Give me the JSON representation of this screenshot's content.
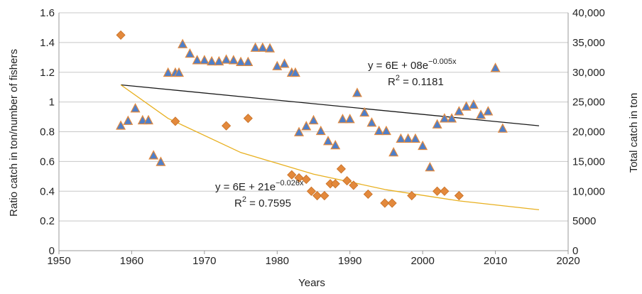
{
  "chart_data": {
    "type": "scatter",
    "xlabel": "Years",
    "ylabel_left": "Ratio catch in ton/number of fishers",
    "ylabel_right": "Total catch in ton",
    "xlim": [
      1950,
      2020
    ],
    "ylim_left": [
      0,
      1.6
    ],
    "ylim_right": [
      0,
      40000
    ],
    "grid": true,
    "x_ticks": [
      "1950",
      "1960",
      "1970",
      "1980",
      "1990",
      "2000",
      "2010",
      "2020"
    ],
    "y_ticks_left": [
      "0",
      "0.2",
      "0.4",
      "0.6",
      "0.8",
      "1",
      "1.2",
      "1.4",
      "1.6"
    ],
    "y_ticks_right": [
      "0",
      "5000",
      "10,000",
      "15,000",
      "20,000",
      "25,000",
      "30,000",
      "35,000",
      "40,000"
    ],
    "series": [
      {
        "axis": "right",
        "marker": "triangle",
        "color": "#4f7fc9",
        "edge_color": "#e3893c",
        "points": [
          [
            1958.5,
            21000
          ],
          [
            1959.5,
            21800
          ],
          [
            1960.5,
            23900
          ],
          [
            1961.5,
            21900
          ],
          [
            1962.3,
            21900
          ],
          [
            1963,
            16000
          ],
          [
            1964,
            14900
          ],
          [
            1965,
            29900
          ],
          [
            1966,
            29900
          ],
          [
            1966.5,
            29900
          ],
          [
            1967,
            34700
          ],
          [
            1968,
            33100
          ],
          [
            1969,
            32000
          ],
          [
            1970,
            32000
          ],
          [
            1971,
            31800
          ],
          [
            1972,
            31800
          ],
          [
            1973,
            32100
          ],
          [
            1974,
            32000
          ],
          [
            1975,
            31700
          ],
          [
            1976,
            31700
          ],
          [
            1977,
            34100
          ],
          [
            1978,
            34100
          ],
          [
            1979,
            34000
          ],
          [
            1980,
            31000
          ],
          [
            1981,
            31400
          ],
          [
            1982,
            29900
          ],
          [
            1982.5,
            29900
          ],
          [
            1983,
            19900
          ],
          [
            1984,
            20900
          ],
          [
            1985,
            21900
          ],
          [
            1986,
            20100
          ],
          [
            1987,
            18400
          ],
          [
            1988,
            17700
          ],
          [
            1989,
            22100
          ],
          [
            1990,
            22100
          ],
          [
            1991,
            26500
          ],
          [
            1992,
            23200
          ],
          [
            1993,
            21500
          ],
          [
            1994,
            20100
          ],
          [
            1995,
            20100
          ],
          [
            1996,
            16500
          ],
          [
            1997,
            18800
          ],
          [
            1998,
            18800
          ],
          [
            1999,
            18800
          ],
          [
            2000,
            17600
          ],
          [
            2001,
            14000
          ],
          [
            2002,
            21200
          ],
          [
            2003,
            22200
          ],
          [
            2004,
            22200
          ],
          [
            2005,
            23400
          ],
          [
            2006,
            24200
          ],
          [
            2007,
            24500
          ],
          [
            2008,
            22800
          ],
          [
            2009,
            23400
          ],
          [
            2010,
            30700
          ],
          [
            2011,
            20500
          ]
        ]
      },
      {
        "axis": "left",
        "marker": "diamond",
        "color": "#e3893c",
        "edge_color": "#e3893c",
        "points": [
          [
            1958.5,
            1.45
          ],
          [
            1966,
            0.87
          ],
          [
            1973,
            0.84
          ],
          [
            1976,
            0.89
          ],
          [
            1982,
            0.51
          ],
          [
            1983,
            0.49
          ],
          [
            1984,
            0.48
          ],
          [
            1984.7,
            0.4
          ],
          [
            1985.5,
            0.37
          ],
          [
            1986.5,
            0.37
          ],
          [
            1987.3,
            0.45
          ],
          [
            1988,
            0.45
          ],
          [
            1988.8,
            0.55
          ],
          [
            1989.6,
            0.47
          ],
          [
            1990.5,
            0.44
          ],
          [
            1992.5,
            0.38
          ],
          [
            1994.8,
            0.32
          ],
          [
            1995.8,
            0.32
          ],
          [
            1998.5,
            0.37
          ],
          [
            2002,
            0.4
          ],
          [
            2003,
            0.4
          ],
          [
            2005,
            0.37
          ]
        ]
      }
    ],
    "trendlines": [
      {
        "color": "#1a1a1a",
        "points": [
          [
            1958.5,
            1.115
          ],
          [
            2016,
            0.84
          ]
        ],
        "equation_parts": [
          "y = 6E + 08e",
          "−0.005x"
        ],
        "r2_parts": [
          "R",
          "2",
          " = 0.1181"
        ]
      },
      {
        "color": "#e8b020",
        "points": [
          [
            1958.5,
            1.115
          ],
          [
            1965,
            0.89
          ],
          [
            1975,
            0.66
          ],
          [
            1985,
            0.515
          ],
          [
            1995,
            0.41
          ],
          [
            2005,
            0.335
          ],
          [
            2016,
            0.275
          ]
        ],
        "equation_parts": [
          "y = 6E + 21e",
          "−0.026x"
        ],
        "r2_parts": [
          "R",
          "2",
          " = 0.7595"
        ]
      }
    ]
  }
}
